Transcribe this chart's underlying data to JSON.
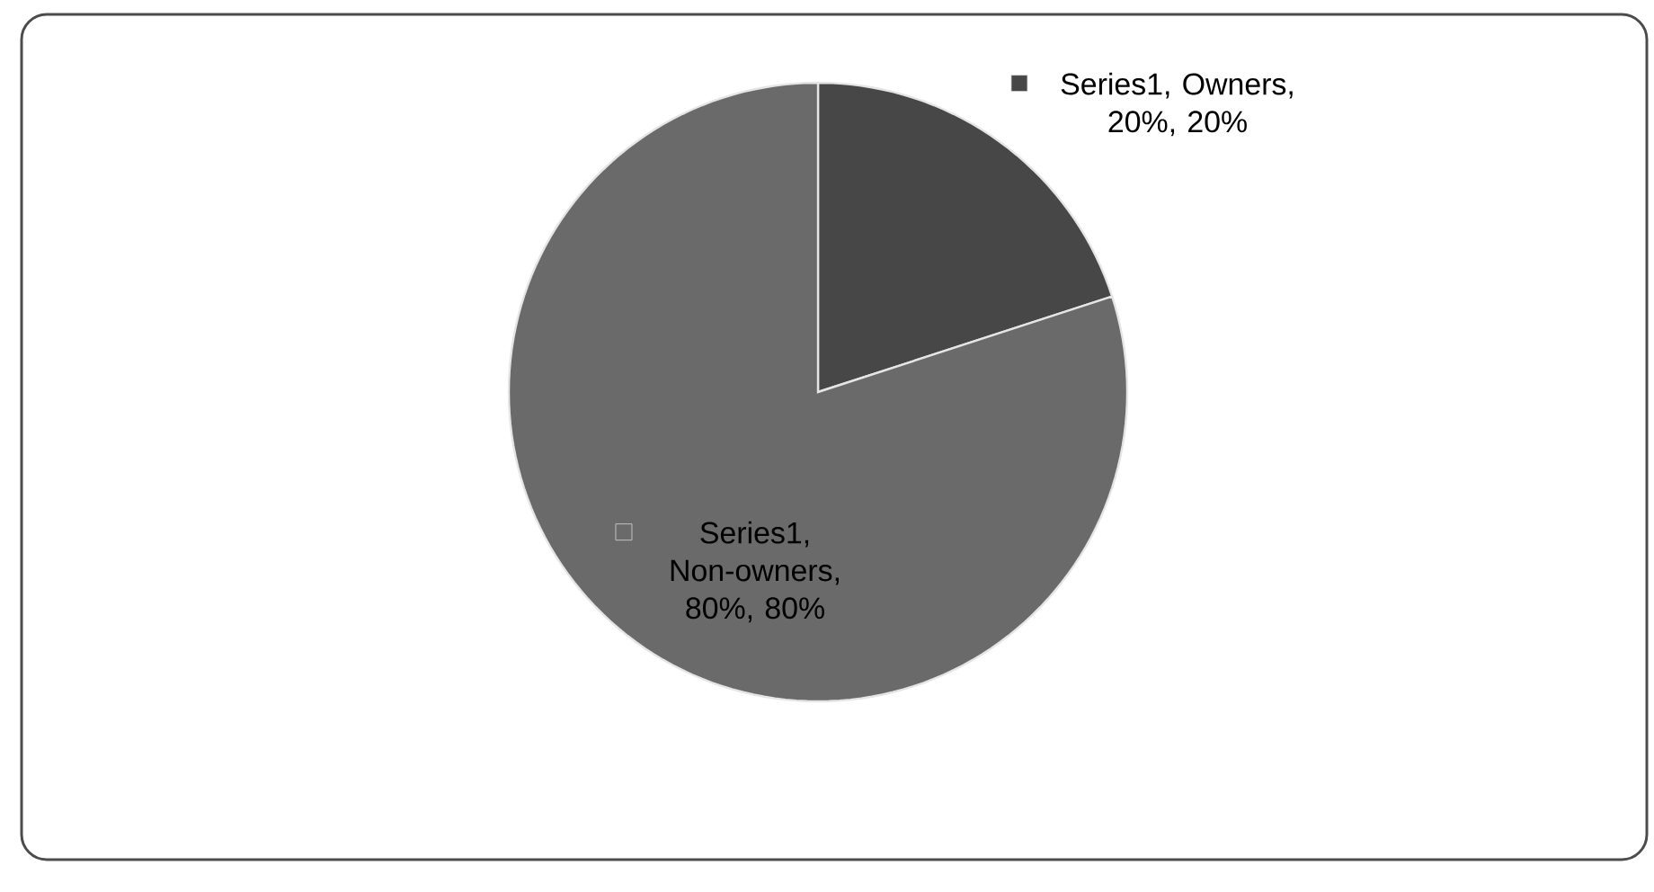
{
  "chart_data": {
    "type": "pie",
    "categories": [
      null,
      null
    ],
    "series": [
      {
        "values": [
          20,
          80
        ],
        "colors": [
          "#474747",
          "#6a6a6a"
        ],
        "value_labels": [
          "Series1, Owners, 20%, 20%",
          "Series1, Non-owners, 80%, 80%"
        ]
      }
    ]
  }
}
